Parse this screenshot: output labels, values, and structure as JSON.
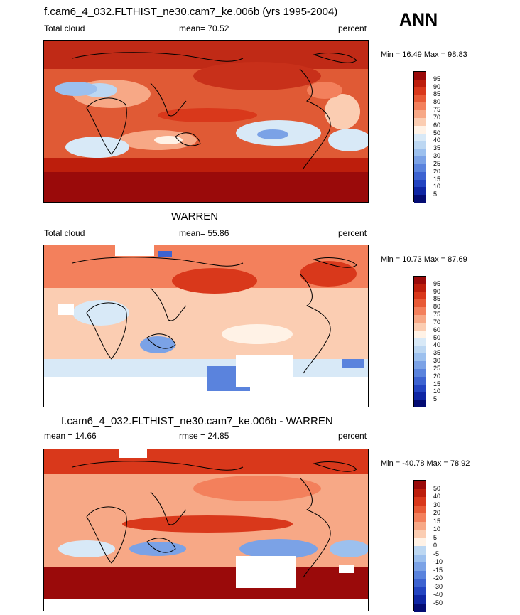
{
  "season": "ANN",
  "panels": [
    {
      "id": "model",
      "title": "f.cam6_4_032.FLTHIST_ne30.cam7_ke.006b (yrs 1995-2004)",
      "left_label": "Total cloud",
      "center_label": "mean=  70.52",
      "right_label": "percent",
      "minmax": "Min =  16.49 Max =  98.83",
      "colorbar": {
        "colors": [
          "#9a0a0a",
          "#bd1e0c",
          "#d9381b",
          "#e85a36",
          "#f3805c",
          "#f7a886",
          "#fbcdb2",
          "#fff2e6",
          "#d8e9f7",
          "#bcd7f2",
          "#9cc0ee",
          "#7ba2e6",
          "#5a83dd",
          "#3d63d1",
          "#2344c1",
          "#0f26a4",
          "#040c73"
        ],
        "ticks": [
          "95",
          "90",
          "85",
          "80",
          "75",
          "70",
          "60",
          "50",
          "40",
          "35",
          "30",
          "25",
          "20",
          "15",
          "10",
          "5"
        ]
      }
    },
    {
      "id": "obs",
      "title": "WARREN",
      "left_label": "Total cloud",
      "center_label": "mean=  55.86",
      "right_label": "percent",
      "minmax": "Min =  10.73 Max =  87.69",
      "colorbar": {
        "colors": [
          "#9a0a0a",
          "#bd1e0c",
          "#d9381b",
          "#e85a36",
          "#f3805c",
          "#f7a886",
          "#fbcdb2",
          "#fff2e6",
          "#d8e9f7",
          "#bcd7f2",
          "#9cc0ee",
          "#7ba2e6",
          "#5a83dd",
          "#3d63d1",
          "#2344c1",
          "#0f26a4",
          "#040c73"
        ],
        "ticks": [
          "95",
          "90",
          "85",
          "80",
          "75",
          "70",
          "60",
          "50",
          "40",
          "35",
          "30",
          "25",
          "20",
          "15",
          "10",
          "5"
        ]
      }
    },
    {
      "id": "diff",
      "title": "f.cam6_4_032.FLTHIST_ne30.cam7_ke.006b - WARREN",
      "left_label": "mean =  14.66",
      "center_label": "rmse =  24.85",
      "right_label": "percent",
      "minmax": "Min = -40.78 Max =  78.92",
      "colorbar": {
        "colors": [
          "#9a0a0a",
          "#bd1e0c",
          "#d9381b",
          "#e85a36",
          "#f3805c",
          "#f7a886",
          "#fbcdb2",
          "#fff2e6",
          "#d8e9f7",
          "#bcd7f2",
          "#9cc0ee",
          "#7ba2e6",
          "#5a83dd",
          "#3d63d1",
          "#2344c1",
          "#0f26a4",
          "#040c73"
        ],
        "ticks": [
          "50",
          "40",
          "30",
          "20",
          "15",
          "10",
          "5",
          "0",
          "-5",
          "-10",
          "-15",
          "-20",
          "-30",
          "-40",
          "-50"
        ]
      }
    }
  ]
}
